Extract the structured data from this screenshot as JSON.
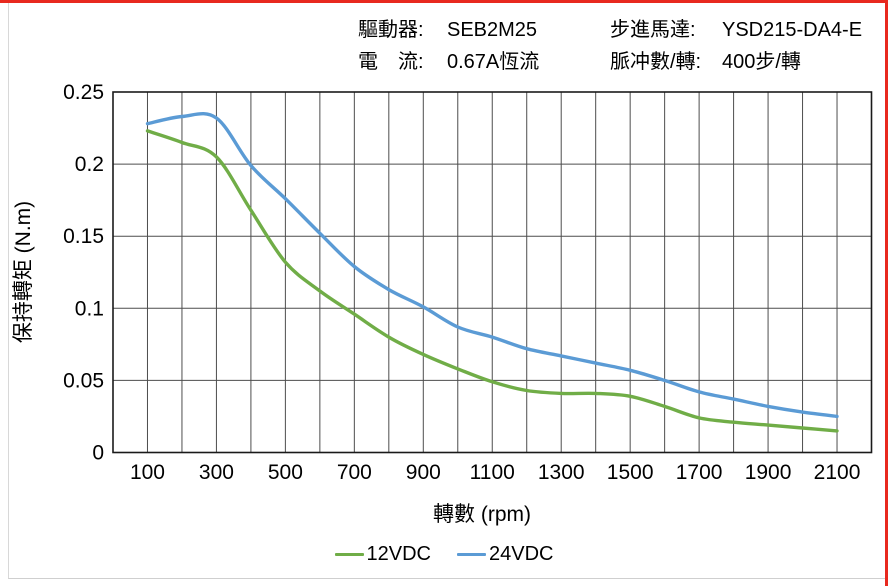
{
  "page": {
    "accent_red": "#e8291f",
    "frame_gray": "#d8d8d8",
    "background": "#ffffff"
  },
  "header": {
    "items": [
      {
        "label": "驅動器:",
        "value": "SEB2M25"
      },
      {
        "label": "電　流:",
        "value": "0.67A恆流"
      },
      {
        "label": "步進馬達:",
        "value": "YSD215-DA4-E"
      },
      {
        "label": "脈冲數/轉:",
        "value": "400步/轉"
      }
    ]
  },
  "chart_data": {
    "type": "line",
    "title": "",
    "xlabel": "轉數 (rpm)",
    "ylabel": "保持轉矩 (N.m)",
    "xlim": [
      0,
      2200
    ],
    "ylim": [
      0,
      0.25
    ],
    "grid": "on",
    "grid_color": "#4d4d4d",
    "border_color": "#1a1a1a",
    "x_grid_step": 100,
    "legend_position": "bottom",
    "x": [
      100,
      200,
      300,
      400,
      500,
      600,
      700,
      800,
      900,
      1000,
      1100,
      1200,
      1300,
      1400,
      1500,
      1600,
      1700,
      1800,
      1900,
      2000,
      2100
    ],
    "series": [
      {
        "name": "12VDC",
        "color": "#70AD47",
        "values": [
          0.223,
          0.215,
          0.205,
          0.168,
          0.132,
          0.112,
          0.096,
          0.08,
          0.068,
          0.058,
          0.049,
          0.043,
          0.041,
          0.041,
          0.039,
          0.032,
          0.024,
          0.021,
          0.019,
          0.017,
          0.015
        ]
      },
      {
        "name": "24VDC",
        "color": "#5B9BD5",
        "values": [
          0.228,
          0.233,
          0.232,
          0.199,
          0.176,
          0.152,
          0.129,
          0.113,
          0.101,
          0.087,
          0.08,
          0.072,
          0.067,
          0.062,
          0.057,
          0.05,
          0.042,
          0.037,
          0.032,
          0.028,
          0.025
        ]
      }
    ],
    "x_ticks": [
      {
        "v": 100,
        "label": "100"
      },
      {
        "v": 300,
        "label": "300"
      },
      {
        "v": 500,
        "label": "500"
      },
      {
        "v": 700,
        "label": "700"
      },
      {
        "v": 900,
        "label": "900"
      },
      {
        "v": 1100,
        "label": "1100"
      },
      {
        "v": 1300,
        "label": "1300"
      },
      {
        "v": 1500,
        "label": "1500"
      },
      {
        "v": 1700,
        "label": "1700"
      },
      {
        "v": 1900,
        "label": "1900"
      },
      {
        "v": 2100,
        "label": "2100"
      }
    ],
    "y_ticks": [
      {
        "v": 0,
        "label": "0"
      },
      {
        "v": 0.05,
        "label": "0.05"
      },
      {
        "v": 0.1,
        "label": "0.1"
      },
      {
        "v": 0.15,
        "label": "0.15"
      },
      {
        "v": 0.2,
        "label": "0.2"
      },
      {
        "v": 0.25,
        "label": "0.25"
      }
    ]
  }
}
